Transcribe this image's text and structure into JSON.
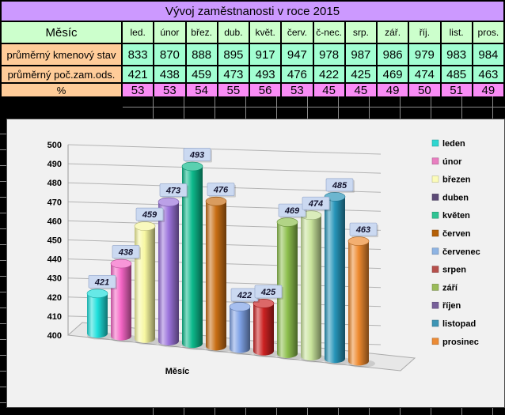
{
  "table": {
    "title": "Vývoj zaměstnanosti v roce 2015",
    "header_label": "Měsíc",
    "months": [
      "led.",
      "únor",
      "břez.",
      "dub.",
      "květ.",
      "červ.",
      "č-nec.",
      "srp.",
      "zář.",
      "říj.",
      "list.",
      "pros."
    ],
    "rows": [
      {
        "label": "průměrný kmenový stav",
        "values": [
          833,
          870,
          888,
          895,
          917,
          947,
          978,
          987,
          986,
          979,
          983,
          984
        ]
      },
      {
        "label": "průměrný poč.zam.ods.",
        "values": [
          421,
          438,
          459,
          473,
          493,
          476,
          422,
          425,
          469,
          474,
          485,
          463
        ]
      },
      {
        "label": "%",
        "values": [
          53,
          53,
          54,
          55,
          56,
          53,
          45,
          45,
          49,
          50,
          51,
          49
        ]
      }
    ],
    "colors": {
      "title_bg": "#CC99FF",
      "header_bg": "#CCFFCC",
      "row_label_bg": "#FFCC99",
      "data_bg": "#A2FFD2",
      "pct_bg": "#F98CF5",
      "grid": "#000000"
    }
  },
  "chart_data": {
    "type": "bar",
    "style": "3d-cylinder",
    "title": "",
    "xlabel": "Měsíc",
    "categories": [
      "leden",
      "únor",
      "březen",
      "duben",
      "květen",
      "červen",
      "červenec",
      "srpen",
      "září",
      "říjen",
      "listopad",
      "prosinec"
    ],
    "values": [
      421,
      438,
      459,
      473,
      493,
      476,
      422,
      425,
      469,
      474,
      485,
      463
    ],
    "ylim": [
      400,
      500
    ],
    "ytick_step": 10,
    "grid": true,
    "legend_position": "right",
    "plot_bg": "#f1f1f1",
    "label_bg": "#CBD9F1",
    "label_border": "#9aaccd",
    "bar_colors": [
      "#1FE0DC",
      "#F566C6",
      "#F7F7A0",
      "#9C74DC",
      "#0DBA8C",
      "#C86E14",
      "#7FA2E6",
      "#CC2222",
      "#8EC04E",
      "#C9E49C",
      "#2795B9",
      "#EE8A2F"
    ],
    "legend_colors": [
      "#2FD6D0",
      "#E87FC0",
      "#FBFBB8",
      "#5C4A76",
      "#2FC493",
      "#B45F06",
      "#8EB4E3",
      "#B6504C",
      "#9ABB59",
      "#77609A",
      "#3D95B5",
      "#EB8B35"
    ]
  }
}
